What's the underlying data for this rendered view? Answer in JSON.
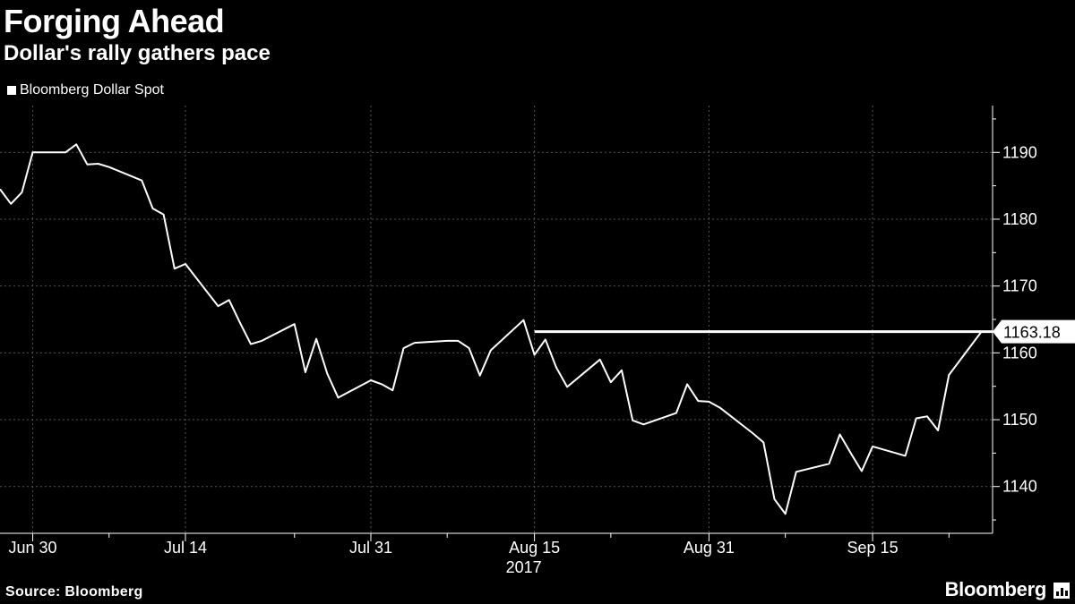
{
  "header": {
    "title": "Forging Ahead",
    "subtitle": "Dollar's rally gathers pace"
  },
  "footer": {
    "source": "Source: Bloomberg",
    "brand": "Bloomberg",
    "brand_icon": "bloomberg-chart-icon"
  },
  "chart_data": {
    "type": "line",
    "title": "Forging Ahead",
    "subtitle": "Dollar's rally gathers pace",
    "xlabel": "",
    "ylabel": "",
    "legend": {
      "placement": "top-left",
      "entries": [
        "Bloomberg Dollar Spot"
      ]
    },
    "grid": true,
    "colors": {
      "background": "#000000",
      "line": "#ffffff",
      "grid": "#555555"
    },
    "ylim": [
      1133,
      1197
    ],
    "yticks": [
      1140,
      1150,
      1160,
      1170,
      1180,
      1190
    ],
    "x_tick_labels": [
      "Jun 30",
      "Jul 14",
      "Jul 31",
      "Aug 15",
      "Aug 31",
      "Sep 15"
    ],
    "x_year_label": "2017",
    "x_tick_dates": [
      "2017-06-30",
      "2017-07-14",
      "2017-07-31",
      "2017-08-15",
      "2017-08-31",
      "2017-09-15"
    ],
    "x_minor_tick_dates": [
      "2017-07-07",
      "2017-07-24",
      "2017-08-07",
      "2017-08-22",
      "2017-09-07",
      "2017-09-22"
    ],
    "xlim": [
      "2017-06-27",
      "2017-09-26"
    ],
    "series": [
      {
        "name": "Bloomberg Dollar Spot",
        "x": [
          "2017-06-27",
          "2017-06-28",
          "2017-06-29",
          "2017-06-30",
          "2017-07-03",
          "2017-07-04",
          "2017-07-05",
          "2017-07-06",
          "2017-07-07",
          "2017-07-10",
          "2017-07-11",
          "2017-07-12",
          "2017-07-13",
          "2017-07-14",
          "2017-07-17",
          "2017-07-18",
          "2017-07-19",
          "2017-07-20",
          "2017-07-21",
          "2017-07-24",
          "2017-07-25",
          "2017-07-26",
          "2017-07-27",
          "2017-07-28",
          "2017-07-31",
          "2017-08-01",
          "2017-08-02",
          "2017-08-03",
          "2017-08-04",
          "2017-08-07",
          "2017-08-08",
          "2017-08-09",
          "2017-08-10",
          "2017-08-11",
          "2017-08-14",
          "2017-08-15",
          "2017-08-16",
          "2017-08-17",
          "2017-08-18",
          "2017-08-21",
          "2017-08-22",
          "2017-08-23",
          "2017-08-24",
          "2017-08-25",
          "2017-08-28",
          "2017-08-29",
          "2017-08-30",
          "2017-08-31",
          "2017-09-01",
          "2017-09-04",
          "2017-09-05",
          "2017-09-06",
          "2017-09-07",
          "2017-09-08",
          "2017-09-11",
          "2017-09-12",
          "2017-09-13",
          "2017-09-14",
          "2017-09-15",
          "2017-09-18",
          "2017-09-19",
          "2017-09-20",
          "2017-09-21",
          "2017-09-22",
          "2017-09-25"
        ],
        "values": [
          1184.5,
          1182.3,
          1184.0,
          1190.0,
          1190.0,
          1191.2,
          1188.2,
          1188.3,
          1187.8,
          1185.8,
          1181.6,
          1180.7,
          1172.6,
          1173.3,
          1167.0,
          1167.9,
          1164.5,
          1161.3,
          1161.8,
          1164.3,
          1157.1,
          1162.1,
          1156.9,
          1153.3,
          1155.9,
          1155.3,
          1154.4,
          1160.7,
          1161.5,
          1161.8,
          1161.8,
          1160.7,
          1156.6,
          1160.4,
          1164.9,
          1159.7,
          1162.0,
          1157.8,
          1154.9,
          1159.0,
          1155.6,
          1157.4,
          1149.9,
          1149.3,
          1151.0,
          1155.3,
          1152.8,
          1152.7,
          1151.8,
          1148.0,
          1146.6,
          1138.1,
          1135.9,
          1142.2,
          1143.4,
          1147.8,
          1145.0,
          1142.3,
          1146.0,
          1144.6,
          1150.2,
          1150.5,
          1148.4,
          1156.7,
          1163.2
        ]
      }
    ],
    "reference_line": {
      "value": 1163.18,
      "from_date": "2017-08-15",
      "to_date": "2017-09-26"
    },
    "last_value_label": "1163.18"
  }
}
